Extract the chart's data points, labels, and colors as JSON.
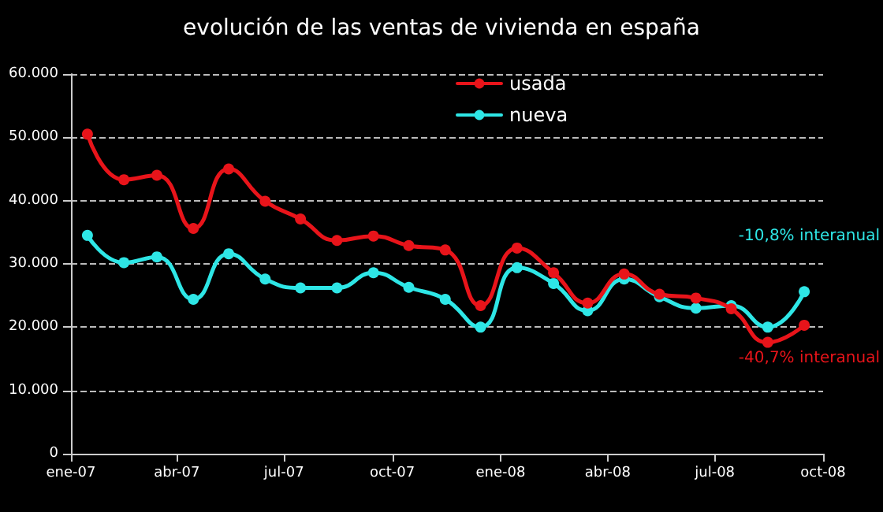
{
  "chart_data": {
    "type": "line",
    "title": "evolución de las ventas de vivienda en españa",
    "x": [
      "2007-01-15",
      "2007-02-15",
      "2007-03-15",
      "2007-04-15",
      "2007-05-15",
      "2007-06-15",
      "2007-07-15",
      "2007-08-15",
      "2007-09-15",
      "2007-10-15",
      "2007-11-15",
      "2007-12-15",
      "2008-01-15",
      "2008-02-15",
      "2008-03-15",
      "2008-04-15",
      "2008-05-15",
      "2008-06-15",
      "2008-07-15",
      "2008-08-15",
      "2008-09-15"
    ],
    "series": [
      {
        "name": "usada",
        "color": "#e8141a",
        "values": [
          50500,
          43300,
          44000,
          35600,
          45000,
          39900,
          37100,
          33700,
          34400,
          32900,
          32200,
          23400,
          32500,
          28600,
          23800,
          28400,
          25200,
          24600,
          22900,
          17600,
          20300
        ]
      },
      {
        "name": "nueva",
        "color": "#2ee6e6",
        "values": [
          34500,
          30200,
          31100,
          24400,
          31600,
          27600,
          26200,
          26200,
          28600,
          26300,
          24400,
          20000,
          29400,
          26900,
          22600,
          27600,
          24800,
          23000,
          23400,
          20000,
          25600
        ]
      }
    ],
    "annotations": [
      "-40,7% interanual",
      "-10,8% interanual"
    ],
    "xlim": [
      "2007-01-01",
      "2008-10-01"
    ],
    "xticks": [
      {
        "value": "2007-01-01",
        "label": "ene-07"
      },
      {
        "value": "2007-04-01",
        "label": "abr-07"
      },
      {
        "value": "2007-07-01",
        "label": "jul-07"
      },
      {
        "value": "2007-10-01",
        "label": "oct-07"
      },
      {
        "value": "2008-01-01",
        "label": "ene-08"
      },
      {
        "value": "2008-04-01",
        "label": "abr-08"
      },
      {
        "value": "2008-07-01",
        "label": "jul-08"
      },
      {
        "value": "2008-10-01",
        "label": "oct-08"
      }
    ],
    "ylim": [
      0,
      60000
    ],
    "yticks": [
      0,
      {
        "value": 10000,
        "label": "10.000"
      },
      {
        "value": 20000,
        "label": "20.000"
      },
      {
        "value": 30000,
        "label": "30.000"
      },
      {
        "value": 40000,
        "label": "40.000"
      },
      {
        "value": 50000,
        "label": "50.000"
      },
      {
        "value": 60000,
        "label": "60.000"
      }
    ],
    "grid": "y",
    "legend": "top",
    "marker": "circle",
    "line_style": "solid"
  }
}
